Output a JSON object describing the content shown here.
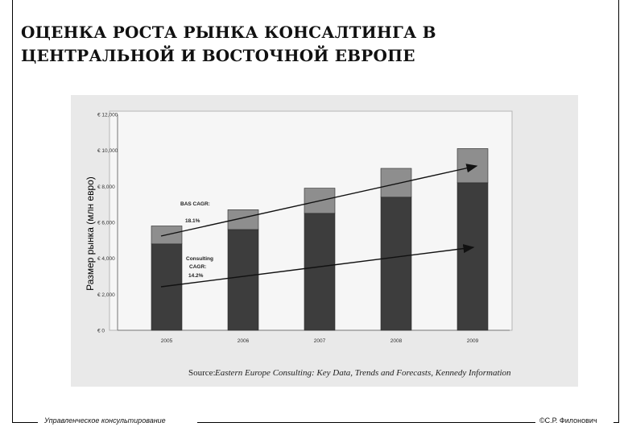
{
  "slide": {
    "title": "ОЦЕНКА РОСТА РЫНКА КОНСАЛТИНГА В ЦЕНТРАЛЬНОЙ И ВОСТОЧНОЙ ЕВРОПЕ",
    "ylabel": "Размер рынка (млн евро)",
    "footer_left": "Управленческое консультирование",
    "footer_right": "©С.Р. Филонович"
  },
  "chart_data": {
    "type": "bar",
    "stacked": true,
    "categories": [
      "2005",
      "2006",
      "2007",
      "2008",
      "2009"
    ],
    "series": [
      {
        "values": [
          4800,
          5600,
          6500,
          7400,
          8200
        ],
        "color": "#3d3d3d"
      },
      {
        "values": [
          1000,
          1100,
          1400,
          1600,
          1900
        ],
        "color": "#8e8e8e"
      }
    ],
    "ylim": [
      0,
      12000
    ],
    "yticks": [
      "€ 0",
      "€ 2,000",
      "€ 4,000",
      "€ 6,000",
      "€ 8,000",
      "€ 10,000",
      "€ 12,000"
    ],
    "annotations": [
      {
        "line1": "BAS CAGR:",
        "line2": "18.1%"
      },
      {
        "line1": "Consulting",
        "line2": "CAGR:",
        "line3": "14.2%"
      }
    ],
    "source_label": "Source:",
    "source_text": "Eastern Europe Consulting: Key Data, Trends and Forecasts, Kennedy Information"
  }
}
